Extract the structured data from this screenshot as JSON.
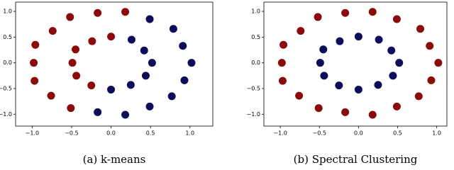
{
  "chart_data": [
    {
      "type": "scatter",
      "caption": "(a) k-means",
      "xlim": [
        -1.21,
        1.29
      ],
      "ylim": [
        -1.23,
        1.18
      ],
      "xticks": [
        {
          "value": -1.0,
          "label": "−1.0"
        },
        {
          "value": -0.5,
          "label": "−0.5"
        },
        {
          "value": 0.0,
          "label": "0.0"
        },
        {
          "value": 0.5,
          "label": "0.5"
        },
        {
          "value": 1.0,
          "label": "1.0"
        }
      ],
      "yticks": [
        {
          "value": -1.0,
          "label": "−1.0"
        },
        {
          "value": -0.5,
          "label": "−0.5"
        },
        {
          "value": 0.0,
          "label": "0.0"
        },
        {
          "value": 0.5,
          "label": "0.5"
        },
        {
          "value": 1.0,
          "label": "1.0"
        }
      ],
      "series": [
        {
          "color": "#8b0a0a",
          "x": [
            0.18,
            -0.17,
            -0.52,
            -0.74,
            -0.96,
            -0.98,
            -0.97,
            -0.76,
            -0.51,
            0.0,
            -0.24,
            -0.45,
            -0.49,
            -0.44,
            -0.25
          ],
          "values": [
            0.99,
            0.97,
            0.89,
            0.62,
            0.35,
            0.0,
            -0.35,
            -0.64,
            -0.88,
            0.51,
            0.42,
            0.26,
            0.0,
            -0.25,
            -0.44
          ]
        },
        {
          "color": "#0d0d5c",
          "x": [
            1.02,
            0.91,
            0.79,
            0.49,
            -0.17,
            0.18,
            0.49,
            0.77,
            0.93,
            0.52,
            0.42,
            0.26,
            0.0,
            0.25,
            0.44
          ],
          "values": [
            0.0,
            0.33,
            0.66,
            0.85,
            -0.96,
            -1.01,
            -0.85,
            -0.65,
            -0.34,
            0.0,
            0.24,
            0.45,
            -0.52,
            -0.43,
            -0.25
          ]
        }
      ]
    },
    {
      "type": "scatter",
      "caption": "(b) Spectral Clustering",
      "xlim": [
        -1.21,
        1.13
      ],
      "ylim": [
        -1.23,
        1.18
      ],
      "xticks": [
        {
          "value": -1.0,
          "label": "−1.0"
        },
        {
          "value": -0.5,
          "label": "−0.5"
        },
        {
          "value": 0.0,
          "label": "0.0"
        },
        {
          "value": 0.5,
          "label": "0.5"
        },
        {
          "value": 1.0,
          "label": "1.0"
        }
      ],
      "yticks": [
        {
          "value": -1.0,
          "label": "−1.0"
        },
        {
          "value": -0.5,
          "label": "−0.5"
        },
        {
          "value": 0.0,
          "label": "0.0"
        },
        {
          "value": 0.5,
          "label": "0.5"
        },
        {
          "value": 1.0,
          "label": "1.0"
        }
      ],
      "series": [
        {
          "color": "#8b0a0a",
          "x": [
            1.02,
            0.91,
            0.79,
            0.49,
            0.18,
            -0.17,
            -0.52,
            -0.74,
            -0.96,
            -0.98,
            -0.97,
            -0.76,
            -0.51,
            -0.17,
            0.18,
            0.49,
            0.77,
            0.93
          ],
          "values": [
            0.0,
            0.33,
            0.66,
            0.85,
            0.99,
            0.97,
            0.89,
            0.62,
            0.35,
            0.0,
            -0.35,
            -0.64,
            -0.88,
            -0.96,
            -1.01,
            -0.85,
            -0.65,
            -0.34
          ]
        },
        {
          "color": "#0d0d5c",
          "x": [
            0.52,
            0.42,
            0.26,
            0.0,
            -0.24,
            -0.45,
            -0.49,
            -0.44,
            -0.25,
            0.0,
            0.25,
            0.44
          ],
          "values": [
            0.0,
            0.24,
            0.45,
            0.51,
            0.42,
            0.26,
            0.0,
            -0.25,
            -0.44,
            -0.52,
            -0.43,
            -0.25
          ]
        }
      ]
    }
  ]
}
